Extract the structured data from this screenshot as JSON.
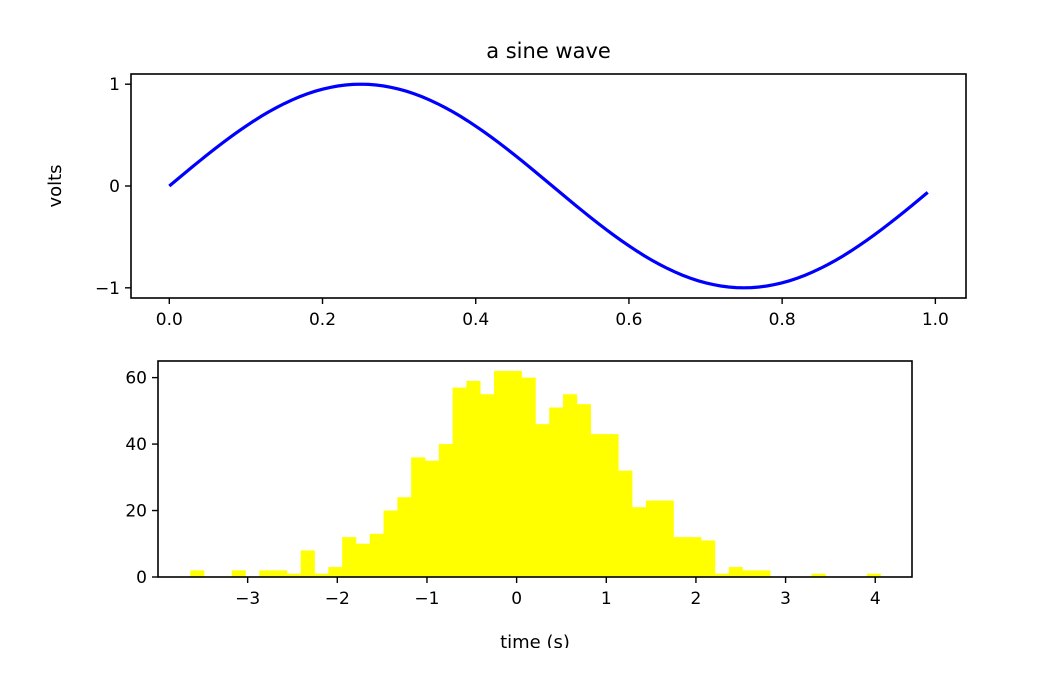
{
  "chart_data": [
    {
      "type": "line",
      "title": "a sine wave",
      "xlabel": "",
      "ylabel": "volts",
      "xlim": [
        -0.05,
        1.04
      ],
      "ylim": [
        -1.1,
        1.1
      ],
      "xticks": [
        "0.0",
        "0.2",
        "0.4",
        "0.6",
        "0.8",
        "1.0"
      ],
      "yticks": [
        "−1",
        "0",
        "1"
      ],
      "xtick_values": [
        0,
        0.2,
        0.4,
        0.6,
        0.8,
        1.0
      ],
      "ytick_values": [
        -1,
        0,
        1
      ],
      "function": "sin(2*pi*t)",
      "t_range": [
        0,
        0.99
      ],
      "t_step": 0.01,
      "color": "#0000ff",
      "grid": false
    },
    {
      "type": "bar",
      "subtype": "histogram",
      "title": "",
      "xlabel": "time (s)",
      "ylabel": "",
      "xlim": [
        -4.0,
        4.41
      ],
      "ylim": [
        0,
        65
      ],
      "xticks": [
        "−3",
        "−2",
        "−1",
        "0",
        "1",
        "2",
        "3",
        "4"
      ],
      "yticks": [
        "0",
        "20",
        "40",
        "60"
      ],
      "xtick_values": [
        -3,
        -2,
        -1,
        0,
        1,
        2,
        3,
        4
      ],
      "ytick_values": [
        0,
        20,
        40,
        60
      ],
      "bin_start": -3.64,
      "bin_end": 4.06,
      "counts": [
        2,
        0,
        0,
        2,
        0,
        2,
        2,
        1,
        8,
        1,
        3,
        12,
        10,
        13,
        20,
        24,
        36,
        35,
        40,
        57,
        59,
        55,
        62,
        62,
        60,
        46,
        51,
        55,
        52,
        43,
        43,
        32,
        21,
        23,
        23,
        12,
        12,
        11,
        1,
        3,
        2,
        2,
        0,
        0,
        0,
        1,
        0,
        0,
        0,
        1
      ],
      "color": "#ffff00",
      "grid": false
    }
  ]
}
